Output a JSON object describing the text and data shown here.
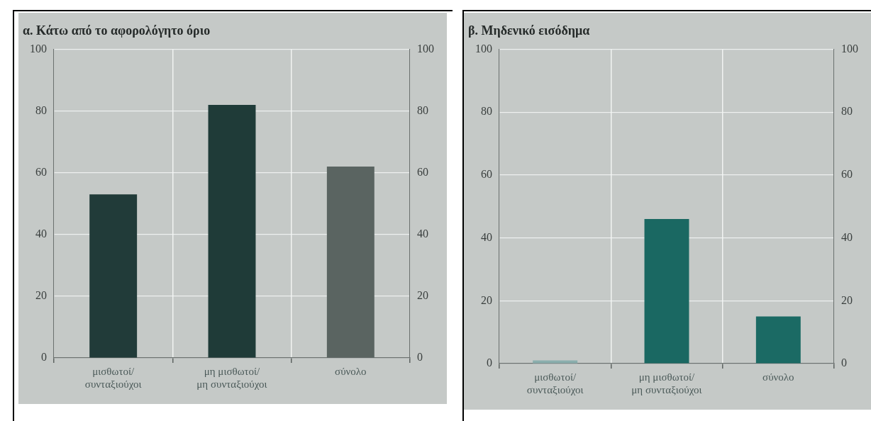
{
  "chart_data": [
    {
      "type": "bar",
      "title": "α. Κάτω από το αφορολόγητο όριο",
      "categories": [
        "μισθωτοί/ συνταξιούχοι",
        "μη μισθωτοί/ μη συνταξιούχοι",
        "σύνολο"
      ],
      "values": [
        53,
        82,
        62
      ],
      "colors": [
        "#213b39",
        "#1f3b38",
        "#5a6461"
      ],
      "ylim": [
        0,
        100
      ],
      "yticks": [
        0,
        20,
        40,
        60,
        80,
        100
      ],
      "y2lim": [
        0,
        100
      ],
      "y2ticks": [
        0,
        20,
        40,
        60,
        80,
        100
      ],
      "grid": true
    },
    {
      "type": "bar",
      "title": "β. Μηδενικό εισόδημα",
      "categories": [
        "μισθωτοί/ συνταξιούχοι",
        "μη μισθωτοί/ μη συνταξιούχοι",
        "σύνολο"
      ],
      "values": [
        1,
        46,
        15
      ],
      "colors": [
        "#8aaead",
        "#1a6862",
        "#1b6a64"
      ],
      "ylim": [
        0,
        100
      ],
      "yticks": [
        0,
        20,
        40,
        60,
        80,
        100
      ],
      "y2lim": [
        0,
        100
      ],
      "y2ticks": [
        0,
        20,
        40,
        60,
        80,
        100
      ],
      "grid": true
    }
  ]
}
